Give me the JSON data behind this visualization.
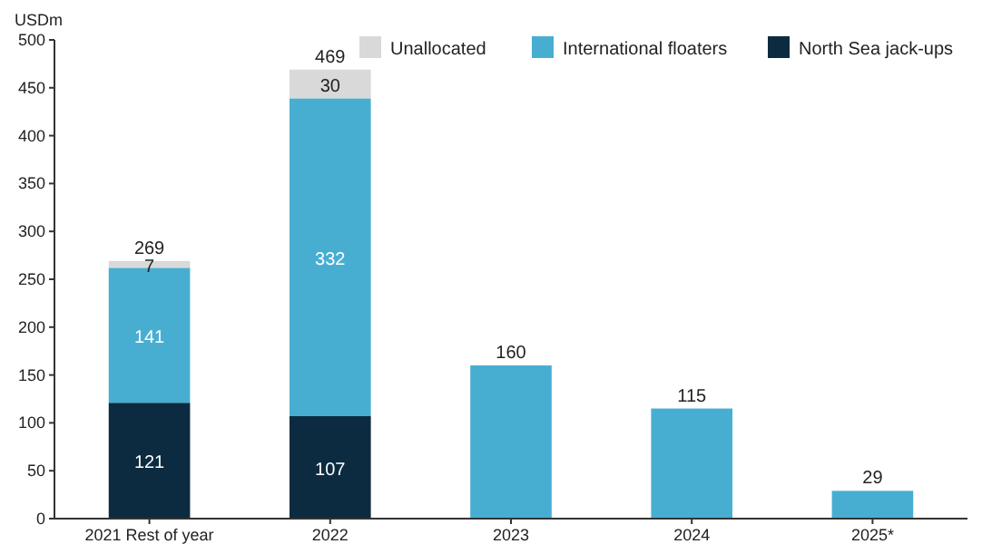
{
  "chart_data": {
    "type": "bar",
    "stacked": true,
    "ylabel": "USDm",
    "categories": [
      "2021 Rest of year",
      "2022",
      "2023",
      "2024",
      "2025*"
    ],
    "series": [
      {
        "name": "North Sea jack-ups",
        "color": "#0c2b40",
        "values": [
          121,
          107,
          null,
          null,
          null
        ],
        "value_labels": [
          "121",
          "107",
          null,
          null,
          null
        ]
      },
      {
        "name": "International floaters",
        "color": "#48aed1",
        "values": [
          141,
          332,
          160,
          115,
          29
        ],
        "value_labels": [
          "141",
          "332",
          null,
          null,
          null
        ]
      },
      {
        "name": "Unallocated",
        "color": "#d9d9d9",
        "values": [
          7,
          30,
          null,
          null,
          null
        ],
        "value_labels": [
          "7",
          "30",
          null,
          null,
          null
        ]
      }
    ],
    "totals": [
      "269",
      "469",
      "160",
      "115",
      "29"
    ],
    "ylim": [
      0,
      500
    ],
    "yticks": [
      0,
      50,
      100,
      150,
      200,
      250,
      300,
      350,
      400,
      450,
      500
    ],
    "grid": false,
    "legend": "top right"
  }
}
